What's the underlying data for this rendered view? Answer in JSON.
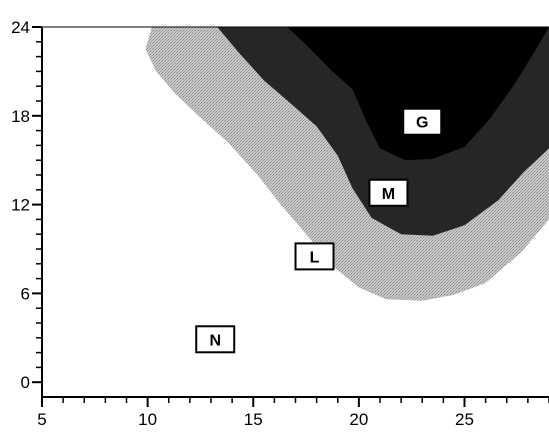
{
  "chart_data": {
    "type": "area",
    "title": "",
    "xlabel": "",
    "ylabel": "",
    "xlim": [
      5,
      29
    ],
    "ylim": [
      -1,
      24
    ],
    "x_ticks": [
      5,
      10,
      15,
      20,
      25
    ],
    "y_ticks": [
      0,
      6,
      12,
      18,
      24
    ],
    "grid": false,
    "regions": [
      {
        "label": "N",
        "fill": "#ffffff",
        "label_at": [
          13.2,
          2.9
        ],
        "boundary": []
      },
      {
        "label": "L",
        "fill": "#b7b7b7",
        "label_at": [
          17.9,
          8.5
        ],
        "boundary": [
          [
            10.2,
            24
          ],
          [
            9.9,
            22.5
          ],
          [
            10.4,
            21
          ],
          [
            11.3,
            19.5
          ],
          [
            12.4,
            18
          ],
          [
            13.8,
            16.2
          ],
          [
            15.2,
            14
          ],
          [
            16.3,
            12
          ],
          [
            17.5,
            10
          ],
          [
            18.8,
            7.8
          ],
          [
            20,
            6.4
          ],
          [
            21.3,
            5.6
          ],
          [
            23,
            5.5
          ],
          [
            24.5,
            5.9
          ],
          [
            26,
            6.7
          ],
          [
            27.7,
            8.8
          ],
          [
            29,
            11
          ]
        ]
      },
      {
        "label": "M",
        "fill": "#262626",
        "label_at": [
          21.4,
          12.8
        ],
        "boundary": [
          [
            13.3,
            24
          ],
          [
            14.3,
            22.3
          ],
          [
            15.5,
            20.4
          ],
          [
            16.8,
            18.8
          ],
          [
            18,
            17.3
          ],
          [
            19,
            15.3
          ],
          [
            19.7,
            13.1
          ],
          [
            20.6,
            11.1
          ],
          [
            22,
            10
          ],
          [
            23.5,
            9.9
          ],
          [
            25,
            10.6
          ],
          [
            26.6,
            12.3
          ],
          [
            27.8,
            14.2
          ],
          [
            29,
            15.8
          ]
        ]
      },
      {
        "label": "G",
        "fill": "#000000",
        "label_at": [
          23,
          17.6
        ],
        "boundary": [
          [
            16.6,
            24
          ],
          [
            17.5,
            22.8
          ],
          [
            18.6,
            21.2
          ],
          [
            19.7,
            19.8
          ],
          [
            20.4,
            17.5
          ],
          [
            21,
            15.8
          ],
          [
            22.2,
            15
          ],
          [
            23.5,
            15.1
          ],
          [
            25,
            15.9
          ],
          [
            26.2,
            17.8
          ],
          [
            27.3,
            20
          ],
          [
            28.3,
            22.3
          ],
          [
            29,
            24
          ]
        ]
      }
    ]
  },
  "colors": {
    "axis": "#000000",
    "label_box_fill": "#ffffff",
    "label_box_border": "#000000"
  }
}
